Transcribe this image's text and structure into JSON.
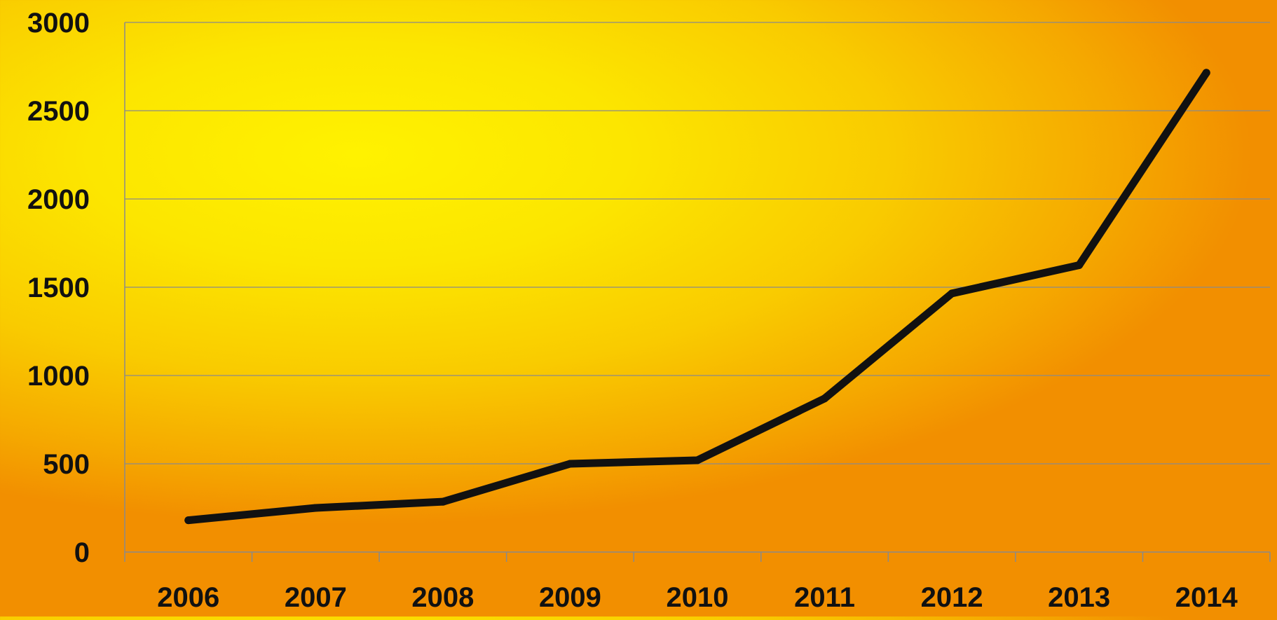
{
  "chart_data": {
    "type": "line",
    "title": "",
    "xlabel": "",
    "ylabel": "",
    "categories": [
      "2006",
      "2007",
      "2008",
      "2009",
      "2010",
      "2011",
      "2012",
      "2013",
      "2014"
    ],
    "series": [
      {
        "values": [
          180,
          250,
          285,
          500,
          520,
          870,
          1465,
          1625,
          2715
        ]
      }
    ],
    "ylim": [
      0,
      3000
    ],
    "yticks": [
      "0",
      "500",
      "1000",
      "1500",
      "2000",
      "2500",
      "3000"
    ],
    "grid": true,
    "legend": "none",
    "colors": {
      "line": "#111111",
      "grid": "#8a8a8a",
      "text": "#111111"
    }
  }
}
